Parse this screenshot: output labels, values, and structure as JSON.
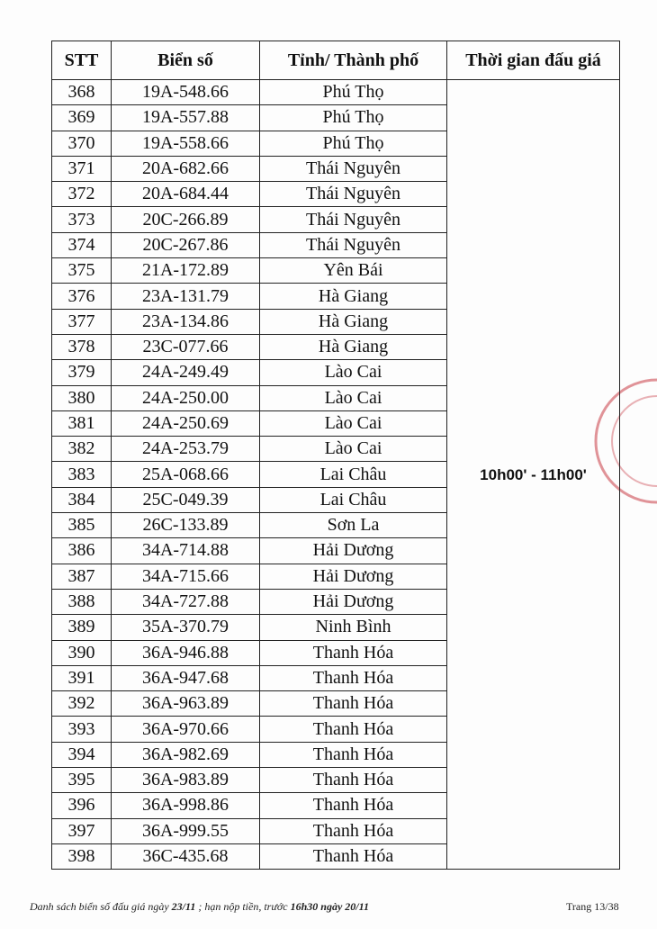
{
  "table": {
    "headers": [
      "STT",
      "Biển số",
      "Tỉnh/ Thành phố",
      "Thời gian đấu giá"
    ],
    "time_slot": "10h00' - 11h00'",
    "rows": [
      [
        "368",
        "19A-548.66",
        "Phú Thọ"
      ],
      [
        "369",
        "19A-557.88",
        "Phú Thọ"
      ],
      [
        "370",
        "19A-558.66",
        "Phú Thọ"
      ],
      [
        "371",
        "20A-682.66",
        "Thái Nguyên"
      ],
      [
        "372",
        "20A-684.44",
        "Thái Nguyên"
      ],
      [
        "373",
        "20C-266.89",
        "Thái Nguyên"
      ],
      [
        "374",
        "20C-267.86",
        "Thái Nguyên"
      ],
      [
        "375",
        "21A-172.89",
        "Yên Bái"
      ],
      [
        "376",
        "23A-131.79",
        "Hà Giang"
      ],
      [
        "377",
        "23A-134.86",
        "Hà Giang"
      ],
      [
        "378",
        "23C-077.66",
        "Hà Giang"
      ],
      [
        "379",
        "24A-249.49",
        "Lào Cai"
      ],
      [
        "380",
        "24A-250.00",
        "Lào Cai"
      ],
      [
        "381",
        "24A-250.69",
        "Lào Cai"
      ],
      [
        "382",
        "24A-253.79",
        "Lào Cai"
      ],
      [
        "383",
        "25A-068.66",
        "Lai Châu"
      ],
      [
        "384",
        "25C-049.39",
        "Lai Châu"
      ],
      [
        "385",
        "26C-133.89",
        "Sơn La"
      ],
      [
        "386",
        "34A-714.88",
        "Hải Dương"
      ],
      [
        "387",
        "34A-715.66",
        "Hải Dương"
      ],
      [
        "388",
        "34A-727.88",
        "Hải Dương"
      ],
      [
        "389",
        "35A-370.79",
        "Ninh Bình"
      ],
      [
        "390",
        "36A-946.88",
        "Thanh Hóa"
      ],
      [
        "391",
        "36A-947.68",
        "Thanh Hóa"
      ],
      [
        "392",
        "36A-963.89",
        "Thanh Hóa"
      ],
      [
        "393",
        "36A-970.66",
        "Thanh Hóa"
      ],
      [
        "394",
        "36A-982.69",
        "Thanh Hóa"
      ],
      [
        "395",
        "36A-983.89",
        "Thanh Hóa"
      ],
      [
        "396",
        "36A-998.86",
        "Thanh Hóa"
      ],
      [
        "397",
        "36A-999.55",
        "Thanh Hóa"
      ],
      [
        "398",
        "36C-435.68",
        "Thanh Hóa"
      ]
    ]
  },
  "footer": {
    "text_1": "Danh sách biển số đấu giá ngày ",
    "date": "23/11",
    "text_2": " ; hạn nộp tiền, trước ",
    "deadline": "16h30 ngày 20/11",
    "page": "Trang 13/38"
  },
  "stamp_color": "#c83c46"
}
